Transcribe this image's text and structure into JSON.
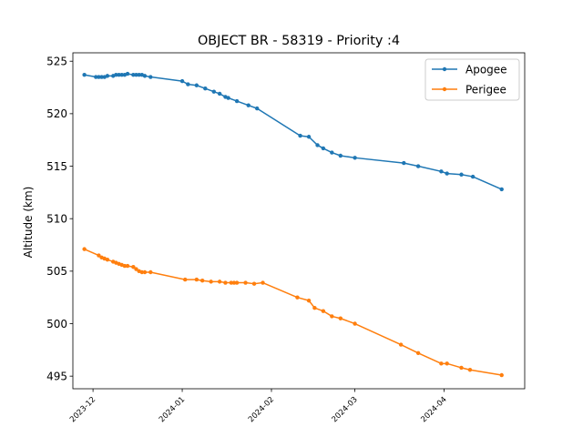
{
  "chart_data": {
    "type": "line",
    "title": "OBJECT BR - 58319 - Priority :4",
    "xlabel": "",
    "ylabel": "Altitude (km)",
    "ylim": [
      493.8,
      525.8
    ],
    "xlim": [
      "2023-11-24",
      "2024-04-29"
    ],
    "yticks": [
      495,
      500,
      505,
      510,
      515,
      520,
      525
    ],
    "xticks": [
      "2023-12",
      "2024-01",
      "2024-02",
      "2024-03",
      "2024-04"
    ],
    "grid": false,
    "legend_position": "top-right",
    "series": [
      {
        "name": "Apogee",
        "color": "#1f77b4",
        "points": [
          [
            "2023-11-28",
            523.7
          ],
          [
            "2023-12-02",
            523.5
          ],
          [
            "2023-12-03",
            523.5
          ],
          [
            "2023-12-04",
            523.5
          ],
          [
            "2023-12-05",
            523.5
          ],
          [
            "2023-12-06",
            523.6
          ],
          [
            "2023-12-08",
            523.6
          ],
          [
            "2023-12-09",
            523.7
          ],
          [
            "2023-12-10",
            523.7
          ],
          [
            "2023-12-11",
            523.7
          ],
          [
            "2023-12-12",
            523.7
          ],
          [
            "2023-12-13",
            523.8
          ],
          [
            "2023-12-15",
            523.7
          ],
          [
            "2023-12-16",
            523.7
          ],
          [
            "2023-12-17",
            523.7
          ],
          [
            "2023-12-18",
            523.7
          ],
          [
            "2023-12-19",
            523.6
          ],
          [
            "2023-12-21",
            523.5
          ],
          [
            "2024-01-01",
            523.1
          ],
          [
            "2024-01-03",
            522.8
          ],
          [
            "2024-01-06",
            522.7
          ],
          [
            "2024-01-09",
            522.4
          ],
          [
            "2024-01-12",
            522.1
          ],
          [
            "2024-01-14",
            521.9
          ],
          [
            "2024-01-16",
            521.6
          ],
          [
            "2024-01-17",
            521.5
          ],
          [
            "2024-01-20",
            521.2
          ],
          [
            "2024-01-24",
            520.8
          ],
          [
            "2024-01-27",
            520.5
          ],
          [
            "2024-02-11",
            517.9
          ],
          [
            "2024-02-14",
            517.8
          ],
          [
            "2024-02-17",
            517.0
          ],
          [
            "2024-02-19",
            516.7
          ],
          [
            "2024-02-22",
            516.3
          ],
          [
            "2024-02-25",
            516.0
          ],
          [
            "2024-03-01",
            515.8
          ],
          [
            "2024-03-18",
            515.3
          ],
          [
            "2024-03-23",
            515.0
          ],
          [
            "2024-03-31",
            514.5
          ],
          [
            "2024-04-02",
            514.3
          ],
          [
            "2024-04-07",
            514.2
          ],
          [
            "2024-04-11",
            514.0
          ],
          [
            "2024-04-21",
            512.8
          ]
        ]
      },
      {
        "name": "Perigee",
        "color": "#ff7f0e",
        "points": [
          [
            "2023-11-28",
            507.1
          ],
          [
            "2023-12-03",
            506.5
          ],
          [
            "2023-12-04",
            506.3
          ],
          [
            "2023-12-05",
            506.2
          ],
          [
            "2023-12-06",
            506.1
          ],
          [
            "2023-12-08",
            505.9
          ],
          [
            "2023-12-09",
            505.8
          ],
          [
            "2023-12-10",
            505.7
          ],
          [
            "2023-12-11",
            505.6
          ],
          [
            "2023-12-12",
            505.5
          ],
          [
            "2023-12-13",
            505.5
          ],
          [
            "2023-12-15",
            505.4
          ],
          [
            "2023-12-16",
            505.2
          ],
          [
            "2023-12-17",
            505.0
          ],
          [
            "2023-12-18",
            504.9
          ],
          [
            "2023-12-19",
            504.9
          ],
          [
            "2023-12-21",
            504.9
          ],
          [
            "2024-01-02",
            504.2
          ],
          [
            "2024-01-06",
            504.2
          ],
          [
            "2024-01-08",
            504.1
          ],
          [
            "2024-01-11",
            504.0
          ],
          [
            "2024-01-14",
            504.0
          ],
          [
            "2024-01-16",
            503.9
          ],
          [
            "2024-01-18",
            503.9
          ],
          [
            "2024-01-19",
            503.9
          ],
          [
            "2024-01-20",
            503.9
          ],
          [
            "2024-01-23",
            503.9
          ],
          [
            "2024-01-26",
            503.8
          ],
          [
            "2024-01-29",
            503.9
          ],
          [
            "2024-02-10",
            502.5
          ],
          [
            "2024-02-14",
            502.2
          ],
          [
            "2024-02-16",
            501.5
          ],
          [
            "2024-02-19",
            501.2
          ],
          [
            "2024-02-22",
            500.7
          ],
          [
            "2024-02-25",
            500.5
          ],
          [
            "2024-03-01",
            500.0
          ],
          [
            "2024-03-17",
            498.0
          ],
          [
            "2024-03-23",
            497.2
          ],
          [
            "2024-03-31",
            496.2
          ],
          [
            "2024-04-02",
            496.2
          ],
          [
            "2024-04-07",
            495.8
          ],
          [
            "2024-04-10",
            495.6
          ],
          [
            "2024-04-21",
            495.1
          ]
        ]
      }
    ]
  }
}
